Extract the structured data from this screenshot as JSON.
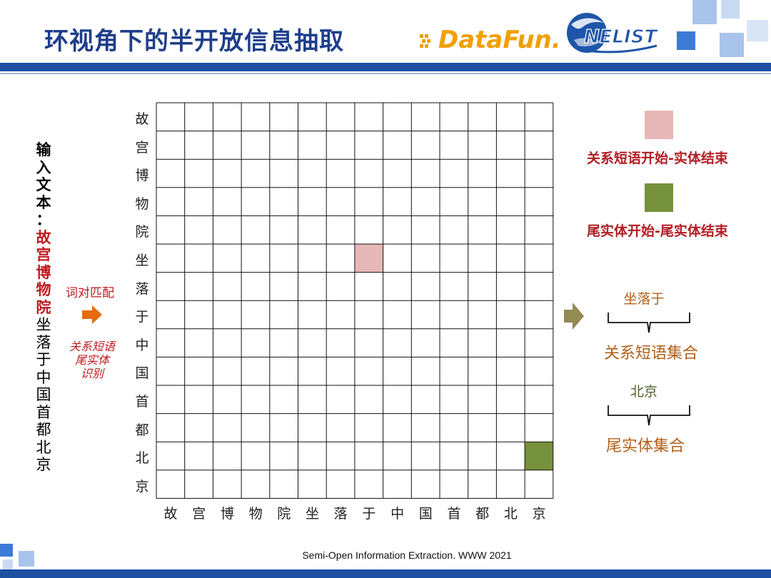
{
  "slide": {
    "title": "环视角下的半开放信息抽取",
    "footer": "Semi-Open Information Extraction. WWW 2021"
  },
  "logos": {
    "datafun": "DataFun.",
    "nelist": "NELIST"
  },
  "input": {
    "label_chars": [
      "输",
      "入",
      "文",
      "本",
      "："
    ],
    "entity_chars": [
      "故",
      "宫",
      "博",
      "物",
      "院"
    ],
    "rest_chars": [
      "坐",
      "落",
      "于",
      "中",
      "国",
      "首",
      "都",
      "北",
      "京"
    ]
  },
  "process": {
    "match_label": "词对匹配",
    "task_lines": [
      "关系短语",
      "尾实体",
      "识别"
    ]
  },
  "grid": {
    "tokens": [
      "故",
      "宫",
      "博",
      "物",
      "院",
      "坐",
      "落",
      "于",
      "中",
      "国",
      "首",
      "都",
      "北",
      "京"
    ],
    "marks": [
      {
        "row": 5,
        "col": 7,
        "type": "relation"
      },
      {
        "row": 12,
        "col": 13,
        "type": "tail"
      }
    ]
  },
  "legend": [
    {
      "key": "relation",
      "label": "关系短语开始-实体结束",
      "color": "#e8b7b7"
    },
    {
      "key": "tail",
      "label": "尾实体开始-尾实体结束",
      "color": "#76923c"
    }
  ],
  "results": {
    "relation_item": "坐落于",
    "relation_item_color": "#b0601a",
    "relation_set": "关系短语集合",
    "tail_item": "北京",
    "tail_item_color": "#4f6228",
    "tail_set": "尾实体集合"
  },
  "colors": {
    "title": "#1f3e8a",
    "header_bar": "#1e4fa0",
    "accent_red": "#c0181e",
    "arrow_orange": "#e46c0a",
    "arrow_olive": "#948a54"
  }
}
